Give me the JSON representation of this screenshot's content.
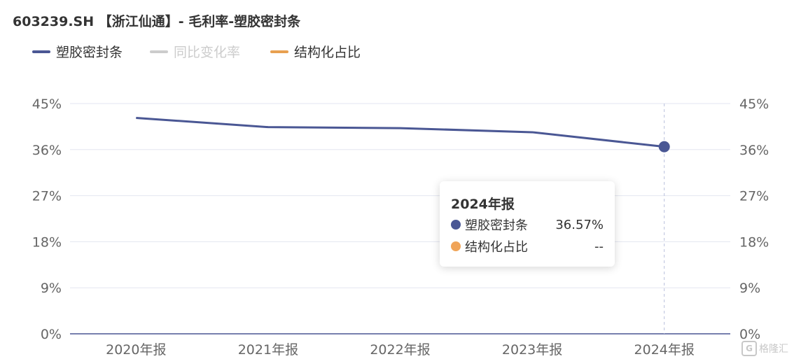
{
  "header": {
    "title": "603239.SH 【浙江仙通】- 毛利率-塑胶密封条"
  },
  "legend": {
    "items": [
      {
        "label": "塑胶密封条",
        "color": "#4a5794",
        "active": true
      },
      {
        "label": "同比变化率",
        "color": "#cccccc",
        "active": false
      },
      {
        "label": "结构化占比",
        "color": "#e8a050",
        "active": true
      }
    ]
  },
  "chart_data": {
    "type": "line",
    "title": "603239.SH 【浙江仙通】- 毛利率-塑胶密封条",
    "categories": [
      "2020年报",
      "2021年报",
      "2022年报",
      "2023年报",
      "2024年报"
    ],
    "series": [
      {
        "name": "塑胶密封条",
        "values": [
          42.2,
          40.4,
          40.2,
          39.4,
          36.57
        ],
        "color": "#4a5794"
      }
    ],
    "y_ticks": [
      "0%",
      "9%",
      "18%",
      "27%",
      "36%",
      "45%"
    ],
    "ylim": [
      0,
      45
    ],
    "grid": true,
    "highlight_index": 4
  },
  "tooltip": {
    "title": "2024年报",
    "rows": [
      {
        "name": "塑胶密封条",
        "value": "36.57%",
        "color": "#4a5794"
      },
      {
        "name": "结构化占比",
        "value": "--",
        "color": "#f0a458"
      }
    ]
  },
  "watermark": {
    "icon_text": "G",
    "text": "格隆汇"
  }
}
